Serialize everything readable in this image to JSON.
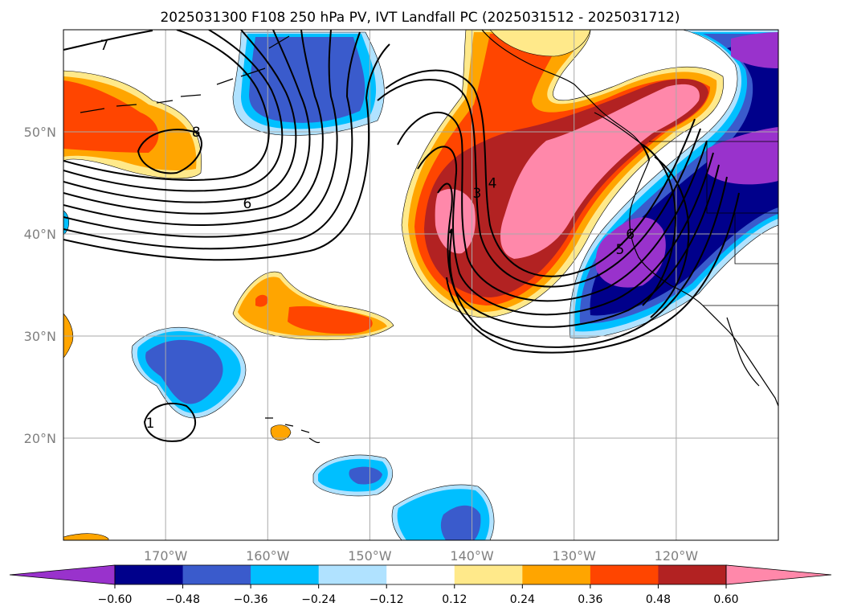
{
  "title": "2025031300 F108 250 hPa PV, IVT Landfall PC (2025031512 - 2025031712)",
  "map": {
    "lon_range": [
      -180,
      -110
    ],
    "lat_range": [
      10,
      60
    ],
    "lon_ticks": [
      {
        "lon": -170,
        "label": "170°W"
      },
      {
        "lon": -160,
        "label": "160°W"
      },
      {
        "lon": -150,
        "label": "150°W"
      },
      {
        "lon": -140,
        "label": "140°W"
      },
      {
        "lon": -130,
        "label": "130°W"
      },
      {
        "lon": -120,
        "label": "120°W"
      }
    ],
    "lat_ticks": [
      {
        "lat": 50,
        "label": "50°N"
      },
      {
        "lat": 40,
        "label": "40°N"
      },
      {
        "lat": 30,
        "label": "30°N"
      },
      {
        "lat": 20,
        "label": "20°N"
      }
    ],
    "grid": true,
    "contour_labels": [
      {
        "text": "7",
        "lon": -176,
        "lat": 58.5
      },
      {
        "text": "8",
        "lon": -167,
        "lat": 50.0
      },
      {
        "text": "6",
        "lon": -162,
        "lat": 43.0
      },
      {
        "text": "3",
        "lon": -139.5,
        "lat": 44.0
      },
      {
        "text": "4",
        "lon": -138.0,
        "lat": 45.0
      },
      {
        "text": "5",
        "lon": -125.5,
        "lat": 38.5
      },
      {
        "text": "6",
        "lon": -124.5,
        "lat": 40.0
      },
      {
        "text": "1",
        "lon": -171.5,
        "lat": 21.5
      }
    ]
  },
  "colorbar": {
    "levels": [
      "-0.60",
      "-0.48",
      "-0.36",
      "-0.24",
      "-0.12",
      "0.12",
      "0.24",
      "0.36",
      "0.48",
      "0.60"
    ],
    "display_labels": [
      "−0.60",
      "−0.48",
      "−0.36",
      "−0.24",
      "−0.12",
      "0.12",
      "0.24",
      "0.36",
      "0.48",
      "0.60"
    ],
    "colors": [
      "#9932cc",
      "#00008b",
      "#3a5bcc",
      "#00bfff",
      "#b0e2ff",
      "#ffffff",
      "#ffe98a",
      "#ffa500",
      "#ff4500",
      "#b22222",
      "#ff88aa"
    ],
    "extend": "both"
  }
}
